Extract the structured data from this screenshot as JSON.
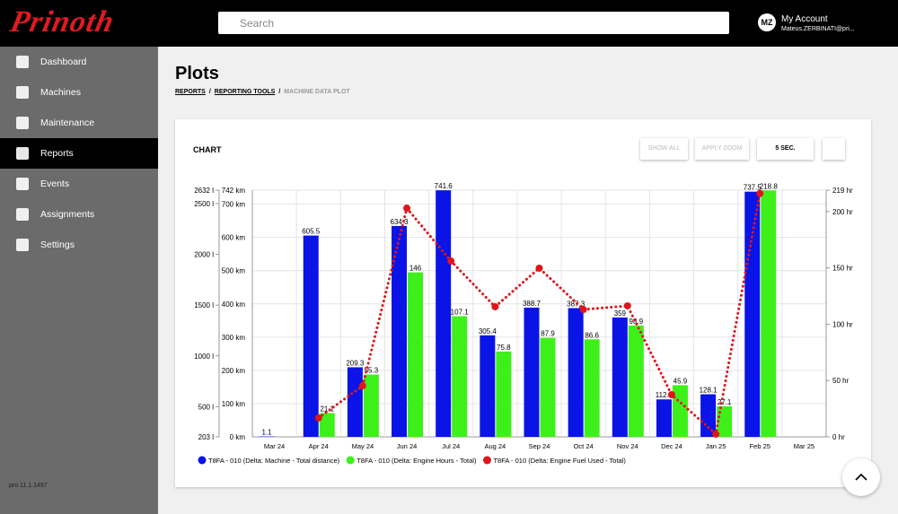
{
  "header": {
    "logo": "Prinoth",
    "search_placeholder": "Search",
    "account": {
      "initials": "MZ",
      "title": "My Account",
      "email": "Mateus.ZERBINATI@pri..."
    }
  },
  "sidebar": {
    "items": [
      "Dashboard",
      "Machines",
      "Maintenance",
      "Reports",
      "Events",
      "Assignments",
      "Settings"
    ],
    "active": 3,
    "version": "pro 11.1.1497"
  },
  "page": {
    "title": "Plots",
    "breadcrumb": [
      "REPORTS",
      "REPORTING TOOLS",
      "MACHINE DATA PLOT"
    ]
  },
  "card": {
    "title": "CHART",
    "buttons": [
      "SHOW ALL",
      "APPLY ZOOM",
      "5 SEC."
    ]
  },
  "chart_data": {
    "type": "bar",
    "categories": [
      "Mar 24",
      "Apr 24",
      "May 24",
      "Jun 24",
      "Jul 24",
      "Aug 24",
      "Sep 24",
      "Oct 24",
      "Nov 24",
      "Dec 24",
      "Jan 25",
      "Feb 25",
      "Mar 25"
    ],
    "series": [
      {
        "name": "T8FA - 010 (Delta: Machine - Total distance)",
        "color": "#0a14e6",
        "axis": "y",
        "values": [
          1.1,
          605.5,
          209.3,
          634.3,
          741.6,
          305.4,
          388.7,
          387.3,
          359,
          112.7,
          128.1,
          737.5,
          null
        ]
      },
      {
        "name": "T8FA - 010 (Delta: Engine Hours - Total)",
        "color": "#3ef01a",
        "axis": "y2",
        "values": [
          null,
          21.1,
          55.3,
          146,
          107.1,
          75.8,
          87.9,
          86.6,
          98.9,
          45.9,
          27.1,
          218.8,
          null
        ]
      },
      {
        "name": "T8FA - 010 (Delta: Engine Fuel Used - Total)",
        "color": "#e0151b",
        "axis": "y3",
        "type": "line",
        "values": [
          null,
          389,
          706,
          2455,
          1934,
          1484,
          1864,
          1457,
          1493,
          618,
          230,
          2600,
          null
        ]
      }
    ],
    "ylim": [
      0,
      742
    ],
    "yticks": [
      {
        "value": 0,
        "label": "0 km"
      },
      {
        "value": 100,
        "label": "100 km"
      },
      {
        "value": 200,
        "label": "200 km"
      },
      {
        "value": 300,
        "label": "300 km"
      },
      {
        "value": 400,
        "label": "400 km"
      },
      {
        "value": 500,
        "label": "500 km"
      },
      {
        "value": 600,
        "label": "600 km"
      },
      {
        "value": 700,
        "label": "700 km"
      },
      {
        "value": 742,
        "label": "742 km"
      }
    ],
    "y2lim": [
      0,
      219
    ],
    "y2ticks": [
      {
        "value": 0,
        "label": "0 hr"
      },
      {
        "value": 50,
        "label": "50 hr"
      },
      {
        "value": 100,
        "label": "100 hr"
      },
      {
        "value": 150,
        "label": "150 hr"
      },
      {
        "value": 200,
        "label": "200 hr"
      },
      {
        "value": 219,
        "label": "219 hr"
      }
    ],
    "y3lim": [
      203,
      2632
    ],
    "y3ticks": [
      {
        "value": 203,
        "label": "203 l"
      },
      {
        "value": 500,
        "label": "500 l"
      },
      {
        "value": 1000,
        "label": "1000 l"
      },
      {
        "value": 1500,
        "label": "1500 l"
      },
      {
        "value": 2000,
        "label": "2000 l"
      },
      {
        "value": 2500,
        "label": "2500 l"
      },
      {
        "value": 2632,
        "label": "2632 l"
      }
    ],
    "grid": true,
    "legend": "bottom-left"
  }
}
